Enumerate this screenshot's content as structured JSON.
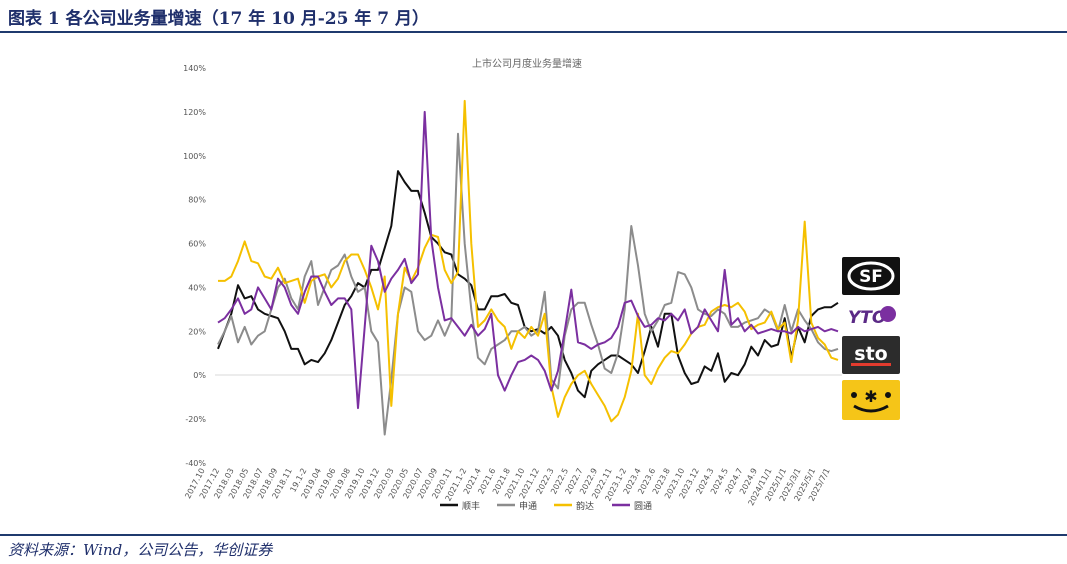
{
  "figure_title": "图表 1 各公司业务量增速（17 年 10 月-25 年 7 月）",
  "source_note": "资料来源：Wind，公司公告，华创证券",
  "logos": [
    {
      "name": "sf-express-logo",
      "text": "SF"
    },
    {
      "name": "yto-logo",
      "text": "YTO"
    },
    {
      "name": "sto-logo",
      "text": "sto"
    },
    {
      "name": "yunda-logo",
      "text": ""
    }
  ],
  "chart_data": {
    "type": "line",
    "title": "上市公司月度业务量增速",
    "xlabel": "",
    "ylabel": "",
    "ylim": [
      -0.4,
      1.4
    ],
    "yticks": [
      "-40%",
      "-20%",
      "0%",
      "20%",
      "40%",
      "60%",
      "80%",
      "100%",
      "120%",
      "140%"
    ],
    "xtick_labels": [
      "2017.10",
      "2017.12",
      "2018.03",
      "2018.05",
      "2018.07",
      "2018.09",
      "2018.11",
      "19.1-2",
      "2019.04",
      "2019.06",
      "2019.08",
      "2019.10",
      "2019.12",
      "2020.03",
      "2020.05",
      "2020.07",
      "2020.09",
      "2020.11",
      "2021.1-2",
      "2021.4",
      "2021.6",
      "2021.8",
      "2021.10",
      "2021.12",
      "2022.3",
      "2022.5",
      "2022.7",
      "2022.9",
      "2022.11",
      "2023.1-2",
      "2023.4",
      "2023.6",
      "2023.8",
      "2023.10",
      "2023.12",
      "2024.3",
      "2024.5",
      "2024.7",
      "2024.9",
      "2024/11/1",
      "2025/1/1",
      "2025/3/1",
      "2025/5/1",
      "2025/7/1"
    ],
    "legend_position": "bottom",
    "grid": false,
    "colors": {
      "顺丰": "#111111",
      "申通": "#8c8c8c",
      "韵达": "#f5c000",
      "圆通": "#7b2fa0"
    },
    "series": [
      {
        "name": "顺丰",
        "values": [
          0.12,
          0.2,
          0.28,
          0.41,
          0.35,
          0.36,
          0.3,
          0.28,
          0.27,
          0.26,
          0.2,
          0.12,
          0.12,
          0.05,
          0.07,
          0.06,
          0.1,
          0.16,
          0.24,
          0.32,
          0.36,
          0.42,
          0.4,
          0.48,
          0.48,
          0.58,
          0.68,
          0.93,
          0.88,
          0.84,
          0.84,
          0.74,
          0.63,
          0.6,
          0.56,
          0.55,
          0.46,
          0.44,
          0.41,
          0.3,
          0.3,
          0.36,
          0.36,
          0.37,
          0.33,
          0.32,
          0.22,
          0.2,
          0.21,
          0.19,
          0.22,
          0.18,
          0.07,
          0.01,
          -0.07,
          -0.1,
          0.02,
          0.05,
          0.07,
          0.09,
          0.09,
          0.07,
          0.05,
          0.01,
          0.11,
          0.22,
          0.13,
          0.28,
          0.28,
          0.09,
          0.01,
          -0.04,
          -0.03,
          0.04,
          0.02,
          0.1,
          -0.03,
          0.01,
          0.0,
          0.05,
          0.13,
          0.09,
          0.16,
          0.13,
          0.14,
          0.26,
          0.08,
          0.22,
          0.15,
          0.27,
          0.3,
          0.31,
          0.31,
          0.33
        ]
      },
      {
        "name": "申通",
        "values": [
          0.14,
          0.2,
          0.27,
          0.15,
          0.22,
          0.14,
          0.18,
          0.2,
          0.3,
          0.4,
          0.44,
          0.35,
          0.3,
          0.45,
          0.52,
          0.32,
          0.4,
          0.48,
          0.5,
          0.55,
          0.45,
          0.38,
          0.4,
          0.2,
          0.15,
          -0.27,
          -0.02,
          0.28,
          0.4,
          0.38,
          0.2,
          0.16,
          0.18,
          0.25,
          0.18,
          0.25,
          1.1,
          0.6,
          0.3,
          0.08,
          0.05,
          0.12,
          0.14,
          0.16,
          0.2,
          0.2,
          0.22,
          0.18,
          0.2,
          0.38,
          -0.02,
          -0.06,
          0.18,
          0.3,
          0.33,
          0.33,
          0.23,
          0.14,
          0.03,
          0.01,
          0.1,
          0.3,
          0.68,
          0.5,
          0.28,
          0.2,
          0.25,
          0.32,
          0.33,
          0.47,
          0.46,
          0.4,
          0.3,
          0.28,
          0.27,
          0.3,
          0.28,
          0.22,
          0.22,
          0.24,
          0.25,
          0.26,
          0.3,
          0.28,
          0.2,
          0.32,
          0.2,
          0.3,
          0.25,
          0.21,
          0.15,
          0.12,
          0.11,
          0.12
        ]
      },
      {
        "name": "韵达",
        "values": [
          0.43,
          0.43,
          0.45,
          0.52,
          0.61,
          0.52,
          0.51,
          0.45,
          0.44,
          0.49,
          0.42,
          0.43,
          0.44,
          0.33,
          0.43,
          0.45,
          0.46,
          0.4,
          0.44,
          0.52,
          0.55,
          0.55,
          0.48,
          0.4,
          0.3,
          0.45,
          -0.14,
          0.28,
          0.49,
          0.43,
          0.49,
          0.58,
          0.64,
          0.63,
          0.48,
          0.42,
          0.47,
          1.25,
          0.6,
          0.22,
          0.25,
          0.3,
          0.25,
          0.22,
          0.12,
          0.2,
          0.17,
          0.22,
          0.18,
          0.28,
          -0.05,
          -0.19,
          -0.1,
          -0.04,
          0.0,
          0.02,
          -0.04,
          -0.09,
          -0.14,
          -0.21,
          -0.18,
          -0.1,
          0.02,
          0.28,
          0.0,
          -0.04,
          0.03,
          0.08,
          0.11,
          0.1,
          0.14,
          0.19,
          0.22,
          0.23,
          0.29,
          0.31,
          0.32,
          0.31,
          0.33,
          0.29,
          0.21,
          0.23,
          0.24,
          0.29,
          0.21,
          0.24,
          0.06,
          0.25,
          0.7,
          0.24,
          0.17,
          0.14,
          0.08,
          0.07
        ]
      },
      {
        "name": "圆通",
        "values": [
          0.24,
          0.26,
          0.3,
          0.35,
          0.28,
          0.3,
          0.4,
          0.35,
          0.3,
          0.44,
          0.4,
          0.32,
          0.28,
          0.38,
          0.45,
          0.45,
          0.38,
          0.32,
          0.35,
          0.35,
          0.3,
          -0.15,
          0.22,
          0.59,
          0.52,
          0.38,
          0.44,
          0.48,
          0.53,
          0.42,
          0.46,
          1.2,
          0.62,
          0.4,
          0.25,
          0.26,
          0.22,
          0.18,
          0.23,
          0.18,
          0.21,
          0.28,
          0.0,
          -0.07,
          0.0,
          0.06,
          0.07,
          0.09,
          0.07,
          0.02,
          -0.07,
          0.02,
          0.2,
          0.39,
          0.15,
          0.14,
          0.12,
          0.14,
          0.15,
          0.17,
          0.22,
          0.33,
          0.34,
          0.27,
          0.22,
          0.23,
          0.26,
          0.25,
          0.28,
          0.25,
          0.3,
          0.19,
          0.22,
          0.3,
          0.25,
          0.2,
          0.48,
          0.23,
          0.26,
          0.2,
          0.23,
          0.19,
          0.2,
          0.21,
          0.2,
          0.2,
          0.19,
          0.22,
          0.2,
          0.21,
          0.22,
          0.2,
          0.21,
          0.2
        ]
      }
    ]
  }
}
